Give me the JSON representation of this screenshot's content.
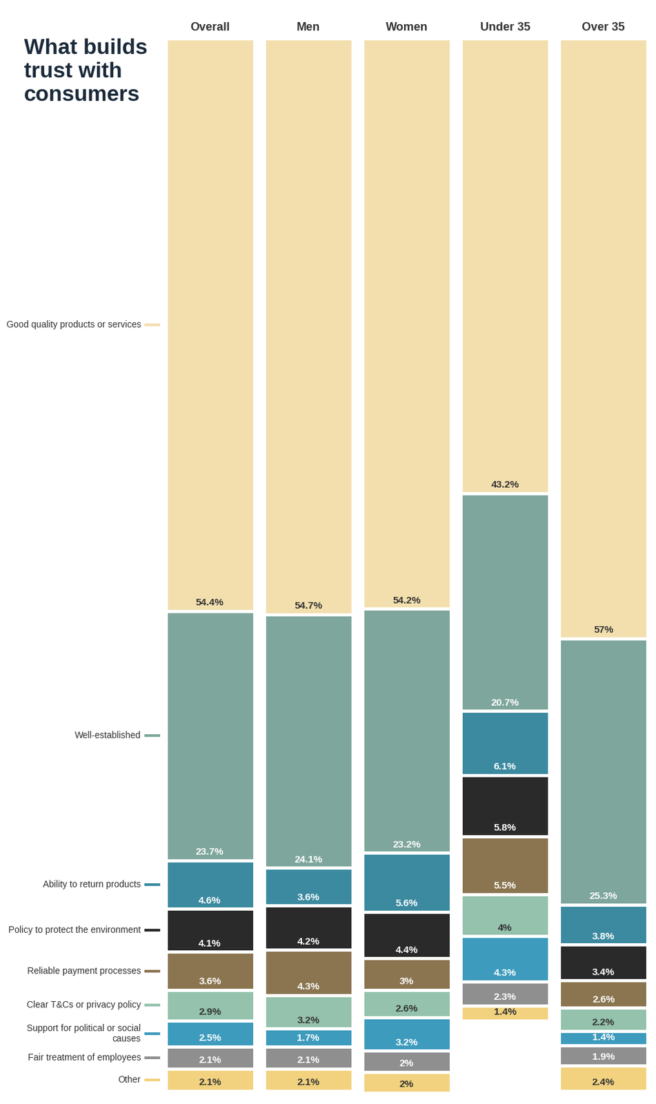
{
  "chart_data": {
    "type": "bar",
    "title": "What builds trust with consumers",
    "categories": [
      "Overall",
      "Men",
      "Women",
      "Under 35",
      "Over 35"
    ],
    "stacked": true,
    "data_labels": true,
    "tick_labels": "x",
    "series": [
      {
        "name": "Good quality products or services",
        "color": "#f3dfae",
        "values": [
          54.4,
          54.7,
          54.2,
          43.2,
          57
        ],
        "value_labels": [
          "54.4%",
          "54.7%",
          "54.2%",
          "43.2%",
          "57%"
        ]
      },
      {
        "name": "Well-established",
        "color": "#7ea69c",
        "values": [
          23.7,
          24.1,
          23.2,
          20.7,
          25.3
        ],
        "value_labels": [
          "23.7%",
          "24.1%",
          "23.2%",
          "20.7%",
          "25.3%"
        ]
      },
      {
        "name": "Ability to return products",
        "color": "#3b8aa0",
        "values": [
          4.6,
          3.6,
          5.6,
          6.1,
          3.8
        ],
        "value_labels": [
          "4.6%",
          "3.6%",
          "5.6%",
          "6.1%",
          "3.8%"
        ]
      },
      {
        "name": "Policy to protect the environment",
        "color": "#2a2a2a",
        "values": [
          4.1,
          4.2,
          4.4,
          5.8,
          3.4
        ],
        "value_labels": [
          "4.1%",
          "4.2%",
          "4.4%",
          "5.8%",
          "3.4%"
        ]
      },
      {
        "name": "Reliable payment processes",
        "color": "#8a7550",
        "values": [
          3.6,
          4.3,
          3,
          5.5,
          2.6
        ],
        "value_labels": [
          "3.6%",
          "4.3%",
          "3%",
          "5.5%",
          "2.6%"
        ]
      },
      {
        "name": "Clear T&Cs or privacy policy",
        "color": "#94c2ac",
        "values": [
          2.9,
          3.2,
          2.6,
          4,
          2.2
        ],
        "value_labels": [
          "2.9%",
          "3.2%",
          "2.6%",
          "4%",
          "2.2%"
        ]
      },
      {
        "name": "Support for political or social causes",
        "color": "#3d9bbd",
        "values": [
          2.5,
          1.7,
          3.2,
          4.3,
          1.4
        ],
        "value_labels": [
          "2.5%",
          "1.7%",
          "3.2%",
          "4.3%",
          "1.4%"
        ]
      },
      {
        "name": "Fair treatment of employees",
        "color": "#8f8f8f",
        "values": [
          2.1,
          2.1,
          2,
          2.3,
          1.9
        ],
        "value_labels": [
          "2.1%",
          "2.1%",
          "2%",
          "2.3%",
          "1.9%"
        ]
      },
      {
        "name": "Other",
        "color": "#f2d27e",
        "values": [
          2.1,
          2.1,
          2,
          1.4,
          2.4
        ],
        "value_labels": [
          "2.1%",
          "2.1%",
          "2%",
          "1.4%",
          "2.4%"
        ]
      }
    ]
  }
}
